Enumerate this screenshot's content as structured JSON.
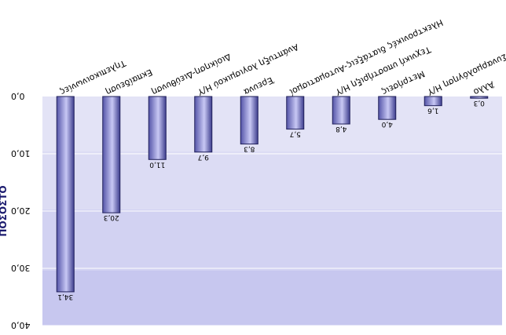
{
  "chart_data": {
    "type": "bar",
    "orientation": "vertical",
    "rendering": "rotated-180",
    "ylabel": "ΠΟΣΟΣΤΟ",
    "ylim": [
      0,
      40
    ],
    "yticks": [
      "0,0",
      "10,0",
      "20,0",
      "30,0",
      "40,0"
    ],
    "categories": [
      "Τηλεπικοινωνίες",
      "Εκπαίδευση",
      "Διοίκηση-Διεύθυνση",
      "Ανάπτυξη λογισμικού Η/Υ",
      "Έρευνα",
      "Ηλεκτρονικές διατάξεις-Αυτοματισμοί",
      "Τεχνική υποστήριξη Η/Υ",
      "Μετρήσεις",
      "Παραγωγή-Συναρμολόγηση Η/Υ",
      "Άλλο"
    ],
    "values": [
      34.1,
      20.3,
      11.0,
      9.7,
      8.3,
      5.7,
      4.8,
      4.0,
      1.6,
      0.3
    ],
    "value_labels": [
      "34,1",
      "20,3",
      "11,0",
      "9,7",
      "8,3",
      "5,7",
      "4,8",
      "4,0",
      "1,6",
      "0,3"
    ],
    "grid": true
  },
  "colors": {
    "bar_top": "#3d3d8e",
    "bar_mid": "#c8c8f4",
    "bar_bottom": "#5454a8",
    "bar_stroke": "#20205a",
    "axis_title": "#1a1a6e"
  }
}
